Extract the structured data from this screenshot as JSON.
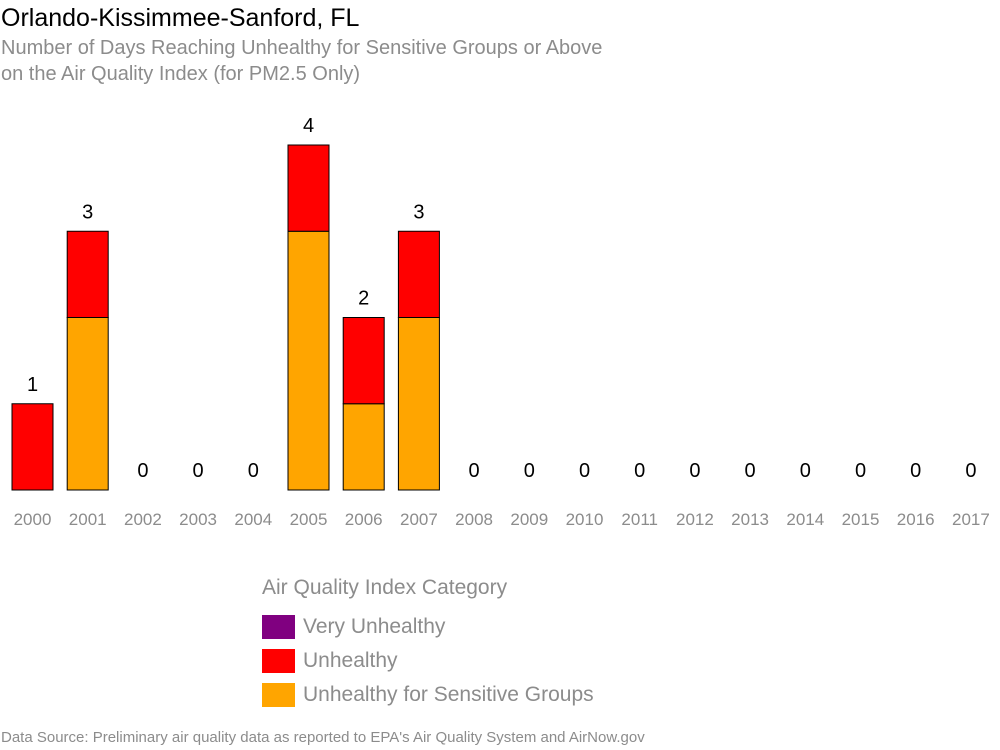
{
  "title": "Orlando-Kissimmee-Sanford, FL",
  "subtitle_line1": "Number of Days Reaching Unhealthy for Sensitive Groups or Above",
  "subtitle_line2": "on the Air Quality Index (for PM2.5 Only)",
  "source": "Data Source: Preliminary air quality data as reported to EPA's Air Quality System and AirNow.gov",
  "chart_data": {
    "type": "bar",
    "stacked": true,
    "categories": [
      "2000",
      "2001",
      "2002",
      "2003",
      "2004",
      "2005",
      "2006",
      "2007",
      "2008",
      "2009",
      "2010",
      "2011",
      "2012",
      "2013",
      "2014",
      "2015",
      "2016",
      "2017"
    ],
    "series": [
      {
        "name": "Unhealthy for Sensitive Groups",
        "color": "#FFA500",
        "values": [
          0,
          2,
          0,
          0,
          0,
          3,
          1,
          2,
          0,
          0,
          0,
          0,
          0,
          0,
          0,
          0,
          0,
          0
        ]
      },
      {
        "name": "Unhealthy",
        "color": "#FF0000",
        "values": [
          1,
          1,
          0,
          0,
          0,
          1,
          1,
          1,
          0,
          0,
          0,
          0,
          0,
          0,
          0,
          0,
          0,
          0
        ]
      },
      {
        "name": "Very Unhealthy",
        "color": "#800080",
        "values": [
          0,
          0,
          0,
          0,
          0,
          0,
          0,
          0,
          0,
          0,
          0,
          0,
          0,
          0,
          0,
          0,
          0,
          0
        ]
      }
    ],
    "totals": [
      1,
      3,
      0,
      0,
      0,
      4,
      2,
      3,
      0,
      0,
      0,
      0,
      0,
      0,
      0,
      0,
      0,
      0
    ],
    "ylim": [
      0,
      4
    ],
    "grid": false,
    "legend_placement": "bottom",
    "legend_title": "Air Quality Index Category",
    "legend": [
      {
        "label": "Very Unhealthy",
        "color": "#800080"
      },
      {
        "label": "Unhealthy",
        "color": "#FF0000"
      },
      {
        "label": "Unhealthy for Sensitive Groups",
        "color": "#FFA500"
      }
    ]
  }
}
